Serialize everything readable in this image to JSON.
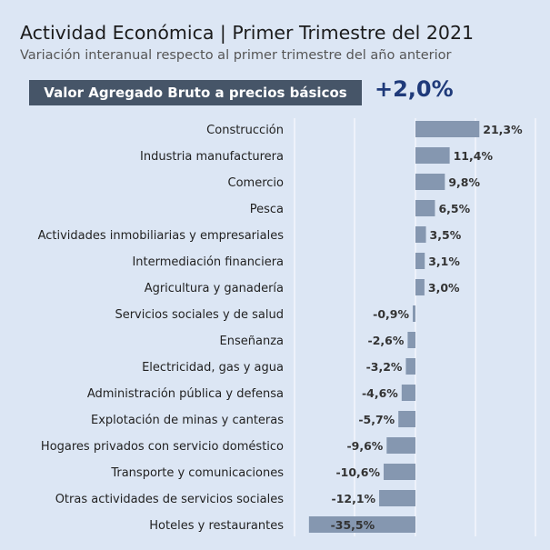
{
  "header": {
    "title": "Actividad Económica | Primer Trimestre del 2021",
    "subtitle": "Variación interanual respecto al primer trimestre del año anterior"
  },
  "summary": {
    "label": "Valor Agregado Bruto a precios básicos",
    "value": "+2,0%"
  },
  "colors": {
    "bar": "#8597b0",
    "badge": "#465568",
    "headline": "#1f3a7a",
    "background": "#dce6f4"
  },
  "chart_data": {
    "type": "bar",
    "orientation": "horizontal",
    "categories": [
      "Construcción",
      "Industria manufacturera",
      "Comercio",
      "Pesca",
      "Actividades inmobiliarias y empresariales",
      "Intermediación financiera",
      "Agricultura y ganadería",
      "Servicios sociales y de salud",
      "Enseñanza",
      "Electricidad, gas y agua",
      "Administración pública y defensa",
      "Explotación de minas y canteras",
      "Hogares privados con servicio doméstico",
      "Transporte y comunicaciones",
      "Otras actividades de servicios sociales",
      "Hoteles y restaurantes"
    ],
    "values": [
      21.3,
      11.4,
      9.8,
      6.5,
      3.5,
      3.1,
      3.0,
      -0.9,
      -2.6,
      -3.2,
      -4.6,
      -5.7,
      -9.6,
      -10.6,
      -12.1,
      -35.5
    ],
    "labels": [
      "21,3%",
      "11,4%",
      "9,8%",
      "6,5%",
      "3,5%",
      "3,1%",
      "3,0%",
      "-0,9%",
      "-2,6%",
      "-3,2%",
      "-4,6%",
      "-5,7%",
      "-9,6%",
      "-10,6%",
      "-12,1%",
      "-35,5%"
    ],
    "grid": true
  }
}
